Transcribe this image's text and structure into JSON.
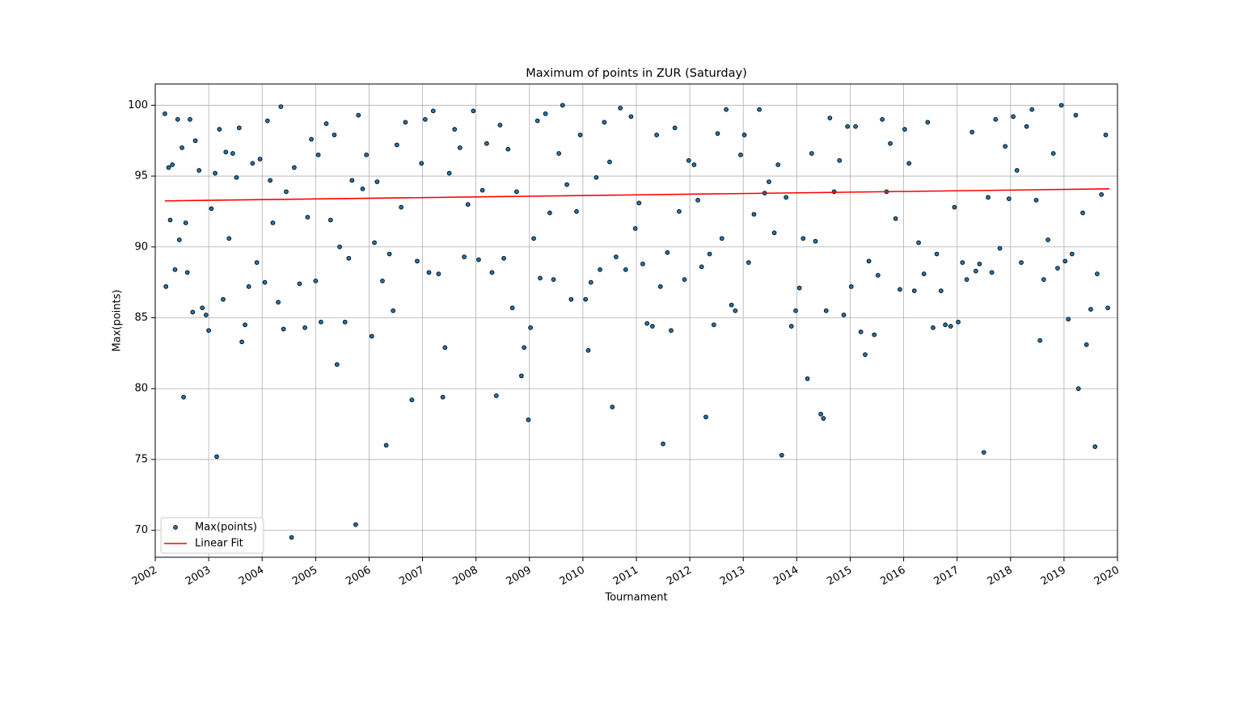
{
  "chart_data": {
    "type": "scatter",
    "title": "Maximum of points in ZUR (Saturday)",
    "x_label": "Tournament",
    "y_label": "Max(points)",
    "xlim": [
      2002,
      2020
    ],
    "xticks": [
      2002,
      2003,
      2004,
      2005,
      2006,
      2007,
      2008,
      2009,
      2010,
      2011,
      2012,
      2013,
      2014,
      2015,
      2016,
      2017,
      2018,
      2019,
      2020
    ],
    "ylim": [
      68.1,
      101.5
    ],
    "yticks": [
      70,
      75,
      80,
      85,
      90,
      95,
      100
    ],
    "grid": true,
    "legend": "lower left",
    "series": [
      {
        "name": "Max(points)",
        "color": "#1f77b4",
        "type": "scatter",
        "x": [
          2002.18,
          2002.2,
          2002.25,
          2002.28,
          2002.32,
          2002.37,
          2002.42,
          2002.45,
          2002.5,
          2002.53,
          2002.57,
          2002.6,
          2002.65,
          2002.7,
          2002.75,
          2002.82,
          2002.88,
          2002.95,
          2003.0,
          2003.05,
          2003.12,
          2003.15,
          2003.2,
          2003.27,
          2003.32,
          2003.38,
          2003.45,
          2003.52,
          2003.57,
          2003.62,
          2003.68,
          2003.75,
          2003.82,
          2003.9,
          2003.96,
          2004.05,
          2004.1,
          2004.15,
          2004.2,
          2004.3,
          2004.35,
          2004.4,
          2004.45,
          2004.55,
          2004.6,
          2004.7,
          2004.8,
          2004.85,
          2004.92,
          2005.0,
          2005.05,
          2005.1,
          2005.2,
          2005.28,
          2005.35,
          2005.4,
          2005.45,
          2005.55,
          2005.62,
          2005.68,
          2005.75,
          2005.8,
          2005.88,
          2005.95,
          2006.05,
          2006.1,
          2006.15,
          2006.25,
          2006.32,
          2006.38,
          2006.45,
          2006.52,
          2006.6,
          2006.68,
          2006.8,
          2006.9,
          2006.98,
          2007.05,
          2007.12,
          2007.2,
          2007.3,
          2007.38,
          2007.42,
          2007.5,
          2007.6,
          2007.7,
          2007.78,
          2007.85,
          2007.95,
          2008.05,
          2008.12,
          2008.2,
          2008.3,
          2008.38,
          2008.45,
          2008.52,
          2008.6,
          2008.68,
          2008.76,
          2008.85,
          2008.9,
          2008.98,
          2009.02,
          2009.08,
          2009.15,
          2009.2,
          2009.3,
          2009.38,
          2009.45,
          2009.55,
          2009.62,
          2009.7,
          2009.78,
          2009.88,
          2009.95,
          2010.05,
          2010.1,
          2010.15,
          2010.25,
          2010.32,
          2010.4,
          2010.5,
          2010.55,
          2010.62,
          2010.7,
          2010.8,
          2010.9,
          2010.98,
          2011.05,
          2011.12,
          2011.2,
          2011.3,
          2011.38,
          2011.45,
          2011.5,
          2011.58,
          2011.65,
          2011.72,
          2011.8,
          2011.9,
          2011.98,
          2012.08,
          2012.15,
          2012.22,
          2012.3,
          2012.37,
          2012.45,
          2012.52,
          2012.6,
          2012.68,
          2012.78,
          2012.85,
          2012.95,
          2013.02,
          2013.1,
          2013.2,
          2013.3,
          2013.4,
          2013.48,
          2013.58,
          2013.65,
          2013.72,
          2013.8,
          2013.9,
          2013.98,
          2014.05,
          2014.12,
          2014.2,
          2014.28,
          2014.35,
          2014.45,
          2014.5,
          2014.55,
          2014.62,
          2014.7,
          2014.8,
          2014.88,
          2014.95,
          2015.02,
          2015.1,
          2015.2,
          2015.28,
          2015.35,
          2015.45,
          2015.52,
          2015.6,
          2015.68,
          2015.75,
          2015.85,
          2015.93,
          2016.02,
          2016.1,
          2016.2,
          2016.28,
          2016.38,
          2016.45,
          2016.55,
          2016.62,
          2016.7,
          2016.78,
          2016.88,
          2016.95,
          2017.02,
          2017.1,
          2017.18,
          2017.28,
          2017.35,
          2017.42,
          2017.5,
          2017.58,
          2017.65,
          2017.72,
          2017.8,
          2017.9,
          2017.97,
          2018.05,
          2018.12,
          2018.2,
          2018.3,
          2018.4,
          2018.48,
          2018.55,
          2018.62,
          2018.7,
          2018.8,
          2018.88,
          2018.95,
          2019.02,
          2019.08,
          2019.15,
          2019.22,
          2019.27,
          2019.35,
          2019.42,
          2019.5,
          2019.58,
          2019.62,
          2019.7,
          2019.78,
          2019.82
        ],
        "values": [
          99.4,
          87.2,
          95.6,
          91.9,
          95.8,
          88.4,
          99.0,
          90.5,
          97.0,
          79.4,
          91.7,
          88.2,
          99.0,
          85.4,
          97.5,
          95.4,
          85.7,
          85.2,
          84.1,
          92.7,
          95.2,
          75.2,
          98.3,
          86.3,
          96.7,
          90.6,
          96.6,
          94.9,
          98.4,
          83.3,
          84.5,
          87.2,
          95.9,
          88.9,
          96.2,
          87.5,
          98.9,
          94.7,
          91.7,
          86.1,
          99.9,
          84.2,
          93.9,
          69.5,
          95.6,
          87.4,
          84.3,
          92.1,
          97.6,
          87.6,
          96.5,
          84.7,
          98.7,
          91.9,
          97.9,
          81.7,
          90.0,
          84.7,
          89.2,
          94.7,
          70.4,
          99.3,
          94.1,
          96.5,
          83.7,
          90.3,
          94.6,
          87.6,
          76.0,
          89.5,
          85.5,
          97.2,
          92.8,
          98.8,
          79.2,
          89.0,
          95.9,
          99.0,
          88.2,
          99.6,
          88.1,
          79.4,
          82.9,
          95.2,
          98.3,
          97.0,
          89.3,
          93.0,
          99.6,
          89.1,
          94.0,
          97.3,
          88.2,
          79.5,
          98.6,
          89.2,
          96.9,
          85.7,
          93.9,
          80.9,
          82.9,
          77.8,
          84.3,
          90.6,
          98.9,
          87.8,
          99.4,
          92.4,
          87.7,
          96.6,
          100.0,
          94.4,
          86.3,
          92.5,
          97.9,
          86.3,
          82.7,
          87.5,
          94.9,
          88.4,
          98.8,
          96.0,
          78.7,
          89.3,
          99.8,
          88.4,
          99.2,
          91.3,
          93.1,
          88.8,
          84.6,
          84.4,
          97.9,
          87.2,
          76.1,
          89.6,
          84.1,
          98.4,
          92.5,
          87.7,
          96.1,
          95.8,
          93.3,
          88.6,
          78.0,
          89.5,
          84.5,
          98.0,
          90.6,
          99.7,
          85.9,
          85.5,
          96.5,
          97.9,
          88.9,
          92.3,
          99.7,
          93.8,
          94.6,
          91.0,
          95.8,
          75.3,
          93.5,
          84.4,
          85.5,
          87.1,
          90.6,
          80.7,
          96.6,
          90.4,
          78.2,
          77.9,
          85.5,
          99.1,
          93.9,
          96.1,
          85.2,
          98.5,
          87.2,
          98.5,
          84.0,
          82.4,
          89.0,
          83.8,
          88.0,
          99.0,
          93.9,
          97.3,
          92.0,
          87.0,
          98.3,
          95.9,
          86.9,
          90.3,
          88.1,
          98.8,
          84.3,
          89.5,
          86.9,
          84.5,
          84.4,
          92.8,
          84.7,
          88.9,
          87.7,
          98.1,
          88.3,
          88.8,
          75.5,
          93.5,
          88.2,
          99.0,
          89.9,
          97.1,
          93.4,
          99.2,
          95.4,
          88.9,
          98.5,
          99.7,
          93.3,
          83.4,
          87.7,
          90.5,
          96.6,
          88.5,
          100.0,
          89.0,
          84.9,
          89.5,
          99.3,
          80.0,
          92.4,
          83.1,
          85.6,
          75.9,
          88.1,
          93.7,
          97.9,
          85.7
        ]
      },
      {
        "name": "Linear Fit",
        "color": "#ff0000",
        "type": "line",
        "x": [
          2002.18,
          2019.85
        ],
        "values": [
          93.25,
          94.1
        ]
      }
    ]
  }
}
